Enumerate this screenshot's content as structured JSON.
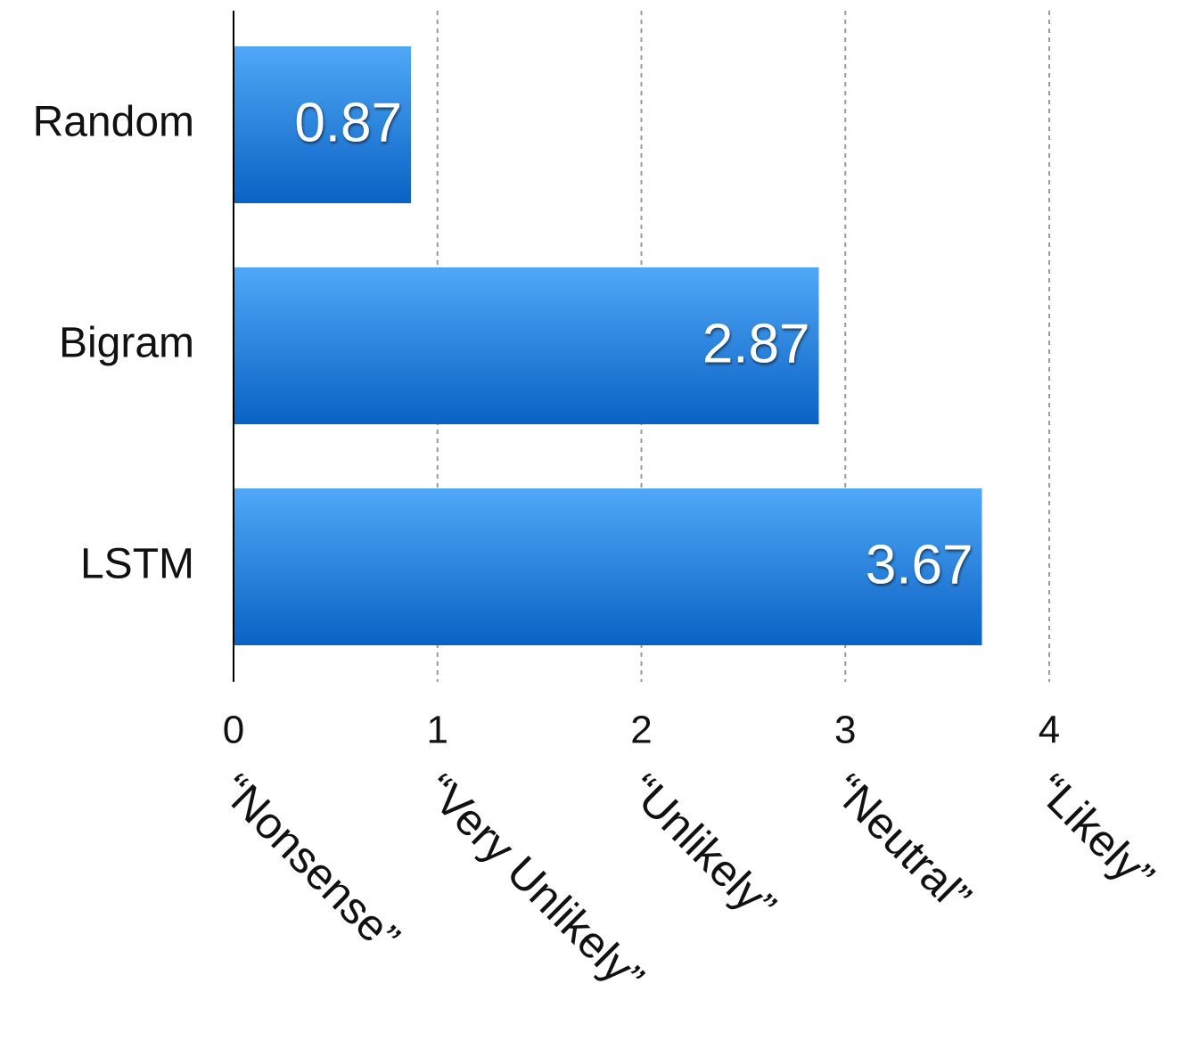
{
  "chart_data": {
    "type": "bar",
    "orientation": "horizontal",
    "categories": [
      "Random",
      "Bigram",
      "LSTM"
    ],
    "values": [
      0.87,
      2.87,
      3.67
    ],
    "color": [
      "#50a8f7",
      "#0a62c4"
    ],
    "xlim": [
      0,
      4
    ],
    "xticks": [
      0,
      1,
      2,
      3,
      4
    ],
    "xtick_descriptions": [
      "“Nonsense”",
      "“Very Unlikely”",
      "“Unlikely”",
      "“Neutral”",
      "“Likely”"
    ],
    "grid": true
  }
}
